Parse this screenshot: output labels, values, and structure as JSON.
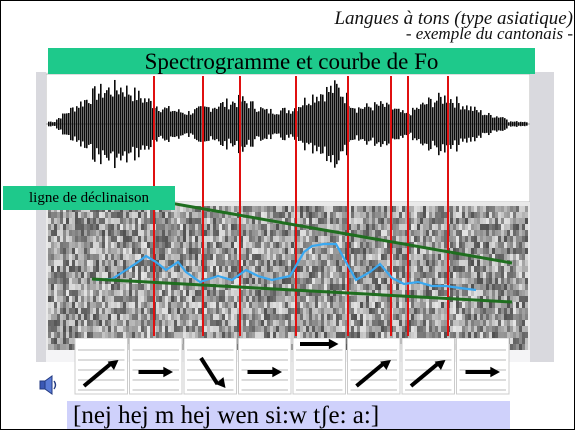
{
  "slide": {
    "header_line1": "Langues à tons (type asiatique)",
    "header_line2": "- exemple du cantonais -",
    "title": "Spectrogramme et courbe de Fo",
    "declination_label": "ligne de déclinaison",
    "ipa_text": "[nej hej  m  hej wen si:w tʃe: a:]",
    "speaker_icon": "speaker-icon"
  },
  "tones": [
    "rising",
    "level",
    "falling",
    "level",
    "high-level",
    "rising",
    "rising",
    "level"
  ],
  "colors": {
    "accent_green": "#1ec98b",
    "syllable_marker": "#e01010",
    "declination_line": "#1f6e1f",
    "pitch_curve": "#3aa8f0",
    "ipa_background": "#cfd1fb"
  }
}
